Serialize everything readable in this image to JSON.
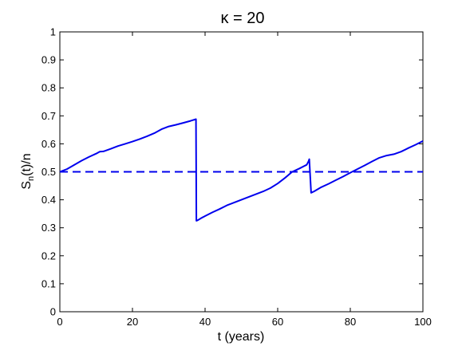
{
  "chart_data": {
    "type": "line",
    "title": "κ = 20",
    "xlabel": "t (years)",
    "ylabel": {
      "main": "S",
      "sub": "n",
      "rest": "(t)/n"
    },
    "xlim": [
      0,
      100
    ],
    "ylim": [
      0,
      1
    ],
    "xticks": [
      0,
      20,
      40,
      60,
      80,
      100
    ],
    "yticks": [
      0,
      0.1,
      0.2,
      0.3,
      0.4,
      0.5,
      0.6,
      0.7,
      0.8,
      0.9,
      1
    ],
    "grid": false,
    "series": [
      {
        "style": "solid",
        "color": "#0000ee",
        "x": [
          0,
          2,
          4,
          6,
          8,
          10,
          11,
          12,
          14,
          16,
          18,
          20,
          22,
          24,
          26,
          28,
          30,
          32,
          34,
          36,
          37.5,
          37.6,
          38,
          39,
          40,
          42,
          44,
          46,
          48,
          50,
          52,
          54,
          56,
          58,
          60,
          62,
          64,
          66,
          68,
          68.5,
          68.7,
          69.2,
          70,
          72,
          74,
          76,
          78,
          80,
          82,
          84,
          86,
          88,
          90,
          92,
          94,
          96,
          98,
          100
        ],
        "y": [
          0.5,
          0.51,
          0.525,
          0.54,
          0.553,
          0.565,
          0.572,
          0.573,
          0.582,
          0.592,
          0.6,
          0.608,
          0.617,
          0.627,
          0.638,
          0.652,
          0.662,
          0.668,
          0.675,
          0.682,
          0.688,
          0.325,
          0.327,
          0.335,
          0.342,
          0.355,
          0.367,
          0.38,
          0.39,
          0.4,
          0.41,
          0.42,
          0.43,
          0.442,
          0.458,
          0.478,
          0.5,
          0.512,
          0.525,
          0.538,
          0.545,
          0.425,
          0.43,
          0.445,
          0.457,
          0.47,
          0.483,
          0.497,
          0.51,
          0.523,
          0.537,
          0.55,
          0.558,
          0.563,
          0.572,
          0.585,
          0.597,
          0.61
        ]
      },
      {
        "style": "dashed",
        "color": "#0000ee",
        "x": [
          0,
          100
        ],
        "y": [
          0.5,
          0.5
        ]
      }
    ]
  }
}
